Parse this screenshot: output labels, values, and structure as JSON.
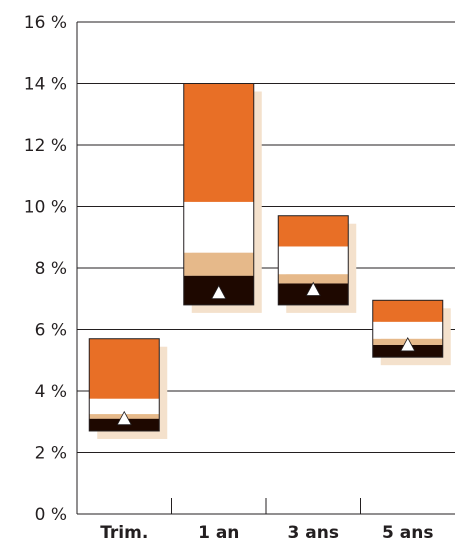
{
  "chart_data": {
    "type": "bar",
    "subtype": "floating-stacked-range-with-marker",
    "categories": [
      "Trim.",
      "1 an",
      "3 ans",
      "5 ans"
    ],
    "y_unit": "%",
    "ylim": [
      0,
      16
    ],
    "y_ticks": [
      0,
      2,
      4,
      6,
      8,
      10,
      12,
      14,
      16
    ],
    "y_tick_labels": [
      "0 %",
      "2 %",
      "4 %",
      "6 %",
      "8 %",
      "10 %",
      "12 %",
      "14 %",
      "16 %"
    ],
    "grid": "horizontal",
    "legend": "none",
    "bands": [
      {
        "color": "#1e0800",
        "ranges": [
          [
            2.7,
            3.1
          ],
          [
            6.8,
            7.75
          ],
          [
            6.8,
            7.5
          ],
          [
            5.1,
            5.5
          ]
        ]
      },
      {
        "color": "#e6b98a",
        "ranges": [
          [
            3.1,
            3.25
          ],
          [
            7.75,
            8.5
          ],
          [
            7.5,
            7.8
          ],
          [
            5.5,
            5.7
          ]
        ]
      },
      {
        "color": "#ffffff",
        "ranges": [
          [
            3.25,
            3.75
          ],
          [
            8.5,
            10.15
          ],
          [
            7.8,
            8.7
          ],
          [
            5.7,
            6.25
          ]
        ]
      },
      {
        "color": "#e86f26",
        "ranges": [
          [
            3.75,
            5.7
          ],
          [
            10.15,
            14.0
          ],
          [
            8.7,
            9.7
          ],
          [
            6.25,
            6.95
          ]
        ]
      }
    ],
    "markers": [
      3.1,
      7.2,
      7.3,
      5.5
    ],
    "shadow_color": "#f4e1cc",
    "border_color": "#231f20"
  }
}
